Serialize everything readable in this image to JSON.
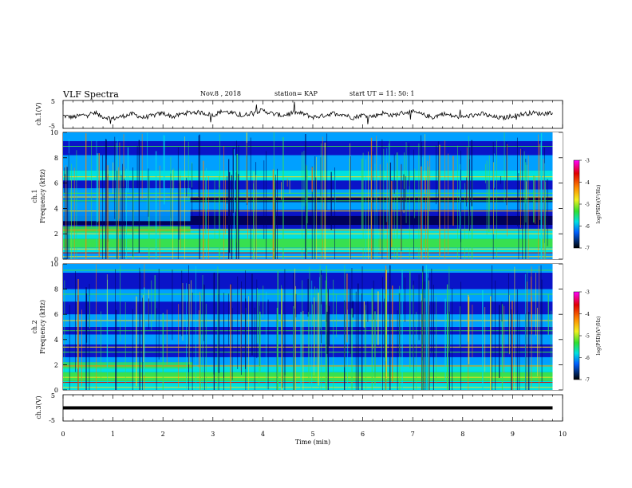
{
  "header": {
    "title": "VLF Spectra",
    "date": "Nov.8 , 2018",
    "station": "station= KAP",
    "start": "start UT = 11: 50: 1"
  },
  "chart_data": [
    {
      "type": "line",
      "panel": "ch1-waveform",
      "ylabel": "ch.1(V)",
      "ylim": [
        -5,
        5
      ],
      "ytick_labels": [
        "5",
        "-5"
      ],
      "xlim": [
        0,
        10
      ],
      "x": [
        0,
        0.2,
        0.4,
        0.6,
        0.8,
        1.0,
        1.2,
        1.4,
        1.6,
        1.8,
        2.0,
        2.2,
        2.4,
        2.6,
        2.8,
        3.0,
        3.2,
        3.4,
        3.6,
        3.8,
        4.0,
        4.2,
        4.4,
        4.6,
        4.8,
        5.0,
        5.2,
        5.4,
        5.6,
        5.8,
        6.0,
        6.2,
        6.4,
        6.6,
        6.8,
        7.0,
        7.2,
        7.4,
        7.6,
        7.8,
        8.0,
        8.2,
        8.4,
        8.6,
        8.8,
        9.0,
        9.2,
        9.4,
        9.6,
        9.8
      ],
      "y": [
        -0.5,
        -1.0,
        -0.2,
        0.4,
        -0.8,
        -1.5,
        -0.6,
        0.2,
        -1.2,
        -0.4,
        0.5,
        -0.9,
        0.3,
        0.8,
        0.6,
        -0.3,
        1.2,
        0.4,
        -0.6,
        0.9,
        1.4,
        0.2,
        -0.4,
        0.7,
        0.3,
        -1.0,
        -0.5,
        0.4,
        0.1,
        -1.2,
        -0.2,
        -0.7,
        0.5,
        -0.4,
        0.6,
        0.9,
        -0.1,
        -1.1,
        0.3,
        -0.6,
        -1.0,
        -0.3,
        0.2,
        -0.9,
        -1.3,
        -0.5,
        0.1,
        0.6,
        0.2,
        0.8
      ]
    },
    {
      "type": "heatmap",
      "panel": "ch1-spectrogram",
      "ylabel": "ch.1",
      "ylabel2": "Frequency (kHz)",
      "ylim": [
        0,
        10
      ],
      "yticks": [
        "0",
        "2",
        "4",
        "6",
        "8",
        "10"
      ],
      "xlim": [
        0,
        10
      ],
      "colorbar": {
        "label": "log(PSD)(V²/Hz)",
        "range": [
          -7,
          -3
        ],
        "ticks": [
          "-3",
          "-4",
          "-5",
          "-6",
          "-7"
        ]
      }
    },
    {
      "type": "heatmap",
      "panel": "ch2-spectrogram",
      "ylabel": "ch.2",
      "ylabel2": "Frequency (kHz)",
      "ylim": [
        0,
        10
      ],
      "yticks": [
        "0",
        "2",
        "4",
        "6",
        "8",
        "10"
      ],
      "xlim": [
        0,
        10
      ],
      "colorbar": {
        "label": "log(PSD)(V²/Hz)",
        "range": [
          -7,
          -3
        ],
        "ticks": [
          "-3",
          "-4",
          "-5",
          "-6",
          "-7"
        ]
      }
    },
    {
      "type": "line",
      "panel": "ch3-waveform",
      "ylabel": "ch.3(V)",
      "ylim": [
        -5,
        5
      ],
      "ytick_labels": [
        "5",
        "-5"
      ],
      "xlim": [
        0,
        10
      ],
      "x": [
        0,
        9.8
      ],
      "y": [
        0,
        0
      ]
    }
  ],
  "xaxis": {
    "label": "Time (min)",
    "ticks": [
      "0",
      "1",
      "2",
      "3",
      "4",
      "5",
      "6",
      "7",
      "8",
      "9",
      "10"
    ]
  },
  "colors": {
    "deep": "#00005a",
    "low": "#0a14c8",
    "mid": "#00a0ff",
    "cyan": "#00e0e0",
    "green": "#38e050",
    "yellow": "#f0e020",
    "orange": "#ff8000",
    "red": "#e00000",
    "trace": "#000000"
  }
}
